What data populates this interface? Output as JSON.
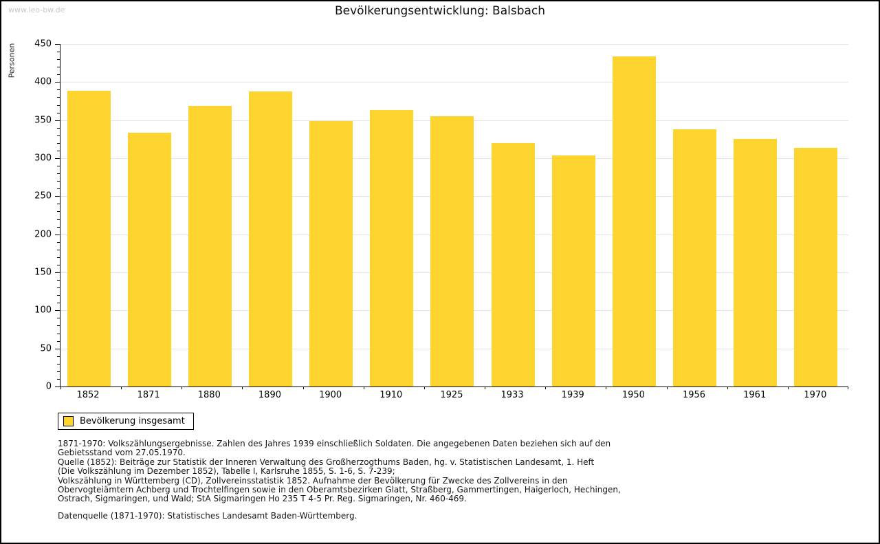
{
  "page": {
    "watermark": "www.leo-bw.de"
  },
  "chart_data": {
    "type": "bar",
    "title": "Bevölkerungsentwicklung: Balsbach",
    "ylabel": "Personen",
    "xlabel": "",
    "categories": [
      "1852",
      "1871",
      "1880",
      "1890",
      "1900",
      "1910",
      "1925",
      "1933",
      "1939",
      "1950",
      "1956",
      "1961",
      "1970"
    ],
    "values": [
      389,
      333,
      369,
      388,
      349,
      363,
      355,
      320,
      304,
      434,
      338,
      325,
      314
    ],
    "series": [
      {
        "name": "Bevölkerung insgesamt",
        "values": [
          389,
          333,
          369,
          388,
          349,
          363,
          355,
          320,
          304,
          434,
          338,
          325,
          314
        ]
      }
    ],
    "ylim": [
      0,
      450
    ],
    "y_major_step": 50,
    "y_minor_step": 10,
    "grid": true,
    "legend_position": "below-left"
  },
  "legend": {
    "label": "Bevölkerung insgesamt"
  },
  "footer": {
    "notes": [
      "1871-1970: Volkszählungsergebnisse. Zahlen des Jahres 1939 einschließlich Soldaten. Die angegebenen Daten beziehen sich auf den",
      "Gebietsstand vom 27.05.1970.",
      "Quelle (1852): Beiträge zur Statistik der Inneren Verwaltung des Großherzogthums Baden, hg. v. Statistischen Landesamt, 1. Heft",
      "(Die Volkszählung im Dezember 1852), Tabelle I, Karlsruhe 1855, S. 1-6, S. 7-239;",
      "Volkszählung in Württemberg (CD), Zollvereinsstatistik 1852. Aufnahme der Bevölkerung für Zwecke des Zollvereins in den",
      "Obervogteiämtern Achberg und Trochtelfingen sowie in den Oberamtsbezirken Glatt, Straßberg, Gammertingen, Haigerloch, Hechingen,",
      "Ostrach, Sigmaringen, und Wald; StA Sigmaringen Ho 235 T 4-5 Pr. Reg. Sigmaringen, Nr. 460-469."
    ],
    "source": "Datenquelle (1871-1970): Statistisches Landesamt Baden-Württemberg."
  },
  "colors": {
    "bar": "#FCD42D",
    "grid": "#E4E4E4",
    "axis": "#000000",
    "watermark": "#C9C9C9",
    "border": "#000000"
  }
}
